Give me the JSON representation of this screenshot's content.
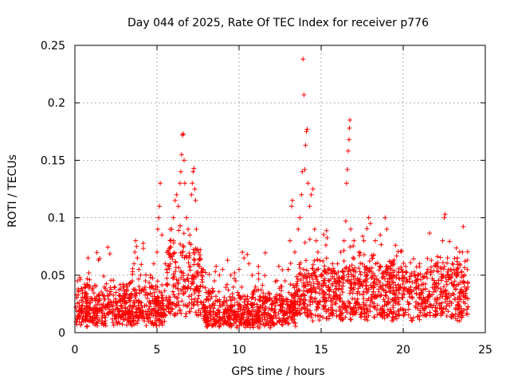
{
  "chart_data": {
    "type": "scatter",
    "title": "Day 044 of 2025, Rate Of TEC Index for receiver p776",
    "xlabel": "GPS time / hours",
    "ylabel": "ROTI / TECUs",
    "xlim": [
      0,
      25
    ],
    "ylim": [
      0,
      0.25
    ],
    "xticks": [
      0,
      5,
      10,
      15,
      20,
      25
    ],
    "yticks": [
      0,
      0.05,
      0.1,
      0.15,
      0.2,
      0.25
    ],
    "xtick_labels": [
      "0",
      "5",
      "10",
      "15",
      "20",
      "25"
    ],
    "ytick_labels": [
      "0",
      "0.05",
      "0.1",
      "0.15",
      "0.2",
      "0.25"
    ],
    "grid": true,
    "marker": "+",
    "color": "#ff0000",
    "series": [
      {
        "name": "ROTI",
        "points": [
          [
            0.15,
            0.045
          ],
          [
            0.2,
            0.038
          ],
          [
            0.3,
            0.048
          ],
          [
            0.35,
            0.02
          ],
          [
            0.8,
            0.065
          ],
          [
            0.85,
            0.052
          ],
          [
            0.9,
            0.046
          ],
          [
            1.2,
            0.03
          ],
          [
            1.5,
            0.028
          ],
          [
            2.0,
            0.032
          ],
          [
            2.5,
            0.035
          ],
          [
            2.8,
            0.038
          ],
          [
            3.2,
            0.04
          ],
          [
            3.5,
            0.045
          ],
          [
            3.6,
            0.06
          ],
          [
            3.65,
            0.07
          ],
          [
            3.7,
            0.08
          ],
          [
            3.75,
            0.075
          ],
          [
            3.8,
            0.065
          ],
          [
            3.9,
            0.055
          ],
          [
            4.0,
            0.05
          ],
          [
            4.3,
            0.045
          ],
          [
            4.6,
            0.05
          ],
          [
            4.8,
            0.06
          ],
          [
            5.0,
            0.07
          ],
          [
            5.05,
            0.09
          ],
          [
            5.1,
            0.1
          ],
          [
            5.15,
            0.11
          ],
          [
            5.2,
            0.13
          ],
          [
            5.3,
            0.085
          ],
          [
            5.5,
            0.06
          ],
          [
            5.7,
            0.07
          ],
          [
            5.8,
            0.08
          ],
          [
            5.9,
            0.09
          ],
          [
            6.0,
            0.1
          ],
          [
            6.1,
            0.115
          ],
          [
            6.2,
            0.12
          ],
          [
            6.3,
            0.11
          ],
          [
            6.4,
            0.13
          ],
          [
            6.45,
            0.14
          ],
          [
            6.5,
            0.155
          ],
          [
            6.55,
            0.172
          ],
          [
            6.6,
            0.173
          ],
          [
            6.65,
            0.15
          ],
          [
            6.7,
            0.13
          ],
          [
            6.8,
            0.1
          ],
          [
            6.9,
            0.09
          ],
          [
            7.0,
            0.085
          ],
          [
            7.1,
            0.12
          ],
          [
            7.15,
            0.13
          ],
          [
            7.2,
            0.14
          ],
          [
            7.25,
            0.143
          ],
          [
            7.3,
            0.125
          ],
          [
            7.35,
            0.115
          ],
          [
            7.4,
            0.09
          ],
          [
            7.5,
            0.06
          ],
          [
            7.8,
            0.04
          ],
          [
            8.0,
            0.035
          ],
          [
            8.5,
            0.045
          ],
          [
            8.8,
            0.05
          ],
          [
            9.0,
            0.055
          ],
          [
            9.3,
            0.063
          ],
          [
            9.5,
            0.05
          ],
          [
            9.8,
            0.045
          ],
          [
            10.0,
            0.055
          ],
          [
            10.2,
            0.07
          ],
          [
            10.3,
            0.065
          ],
          [
            10.5,
            0.068
          ],
          [
            10.6,
            0.06
          ],
          [
            10.8,
            0.05
          ],
          [
            11.0,
            0.04
          ],
          [
            11.5,
            0.03
          ],
          [
            12.0,
            0.028
          ],
          [
            12.5,
            0.03
          ],
          [
            12.8,
            0.045
          ],
          [
            13.0,
            0.055
          ],
          [
            13.1,
            0.08
          ],
          [
            13.2,
            0.11
          ],
          [
            13.25,
            0.115
          ],
          [
            13.4,
            0.07
          ],
          [
            13.6,
            0.09
          ],
          [
            13.7,
            0.1
          ],
          [
            13.8,
            0.12
          ],
          [
            13.85,
            0.14
          ],
          [
            13.9,
            0.238
          ],
          [
            13.95,
            0.207
          ],
          [
            14.0,
            0.142
          ],
          [
            14.05,
            0.163
          ],
          [
            14.1,
            0.175
          ],
          [
            14.15,
            0.177
          ],
          [
            14.2,
            0.13
          ],
          [
            14.3,
            0.11
          ],
          [
            14.4,
            0.12
          ],
          [
            14.5,
            0.125
          ],
          [
            14.6,
            0.09
          ],
          [
            14.7,
            0.08
          ],
          [
            14.8,
            0.07
          ],
          [
            15.0,
            0.05
          ],
          [
            15.5,
            0.045
          ],
          [
            16.0,
            0.06
          ],
          [
            16.2,
            0.07
          ],
          [
            16.4,
            0.08
          ],
          [
            16.5,
            0.097
          ],
          [
            16.55,
            0.13
          ],
          [
            16.6,
            0.142
          ],
          [
            16.65,
            0.158
          ],
          [
            16.7,
            0.168
          ],
          [
            16.72,
            0.178
          ],
          [
            16.75,
            0.185
          ],
          [
            16.8,
            0.09
          ],
          [
            17.0,
            0.08
          ],
          [
            17.3,
            0.07
          ],
          [
            17.6,
            0.08
          ],
          [
            17.9,
            0.1
          ],
          [
            18.0,
            0.095
          ],
          [
            18.3,
            0.08
          ],
          [
            18.6,
            0.085
          ],
          [
            18.9,
            0.1
          ],
          [
            19.0,
            0.09
          ],
          [
            19.3,
            0.06
          ],
          [
            19.6,
            0.05
          ],
          [
            20.0,
            0.045
          ],
          [
            20.5,
            0.05
          ],
          [
            21.0,
            0.06
          ],
          [
            21.5,
            0.055
          ],
          [
            22.0,
            0.06
          ],
          [
            22.4,
            0.08
          ],
          [
            22.5,
            0.1
          ],
          [
            22.55,
            0.103
          ],
          [
            22.7,
            0.065
          ],
          [
            23.0,
            0.06
          ],
          [
            23.3,
            0.065
          ],
          [
            23.6,
            0.07
          ],
          [
            23.9,
            0.063
          ]
        ]
      }
    ],
    "noise_seed": 44,
    "noise_points": 2600
  }
}
